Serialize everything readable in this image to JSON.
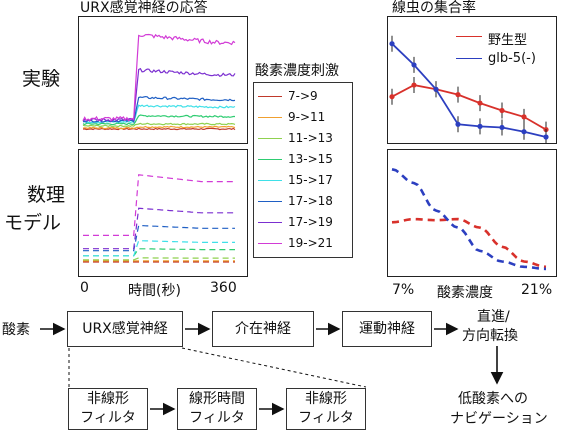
{
  "titles": {
    "urx_response": "URX感覚神経の応答",
    "aggregation": "線虫の集合率"
  },
  "row_labels": {
    "experiment": "実験",
    "model_line1": "数理",
    "model_line2": "モデル"
  },
  "stim_legend": {
    "title": "酸素濃度刺激",
    "items": [
      {
        "label": "7->9",
        "color": "#c0392b"
      },
      {
        "label": "9->11",
        "color": "#f0a030"
      },
      {
        "label": "11->13",
        "color": "#8fd14f"
      },
      {
        "label": "13->15",
        "color": "#2ecc71"
      },
      {
        "label": "15->17",
        "color": "#3fe0e8"
      },
      {
        "label": "17->18",
        "color": "#1f5fc4"
      },
      {
        "label": "17->19",
        "color": "#7b2fd0"
      },
      {
        "label": "19->21",
        "color": "#d23bd6"
      }
    ]
  },
  "time_axis": {
    "start": "0",
    "label": "時間(秒)",
    "end": "360"
  },
  "o2_axis": {
    "start": "7%",
    "label": "酸素濃度",
    "end": "21%"
  },
  "strain_legend": {
    "items": [
      {
        "label": "野生型",
        "color": "#d8312b"
      },
      {
        "label": "glb-5(-)",
        "color": "#2c3fc0"
      }
    ]
  },
  "chart_data": [
    {
      "type": "line",
      "panel": "experiment-urx",
      "x_range": [
        0,
        360
      ],
      "stimulus_time": 120,
      "series": [
        {
          "name": "7->9",
          "baseline": 0.02,
          "response": 0.02
        },
        {
          "name": "9->11",
          "baseline": 0.03,
          "response": 0.04
        },
        {
          "name": "11->13",
          "baseline": 0.05,
          "response": 0.07
        },
        {
          "name": "13->15",
          "baseline": 0.07,
          "response": 0.15
        },
        {
          "name": "15->17",
          "baseline": 0.09,
          "response": 0.25
        },
        {
          "name": "17->18",
          "baseline": 0.1,
          "response": 0.33
        },
        {
          "name": "17->19",
          "baseline": 0.11,
          "response": 0.6
        },
        {
          "name": "19->21",
          "baseline": 0.12,
          "response": 0.95
        }
      ]
    },
    {
      "type": "line",
      "panel": "model-urx",
      "x_range": [
        0,
        360
      ],
      "stimulus_time": 120,
      "series": [
        {
          "name": "7->9",
          "baseline": 0.02,
          "response": 0.02
        },
        {
          "name": "9->11",
          "baseline": 0.03,
          "response": 0.03
        },
        {
          "name": "11->13",
          "baseline": 0.04,
          "response": 0.06
        },
        {
          "name": "13->15",
          "baseline": 0.08,
          "response": 0.15
        },
        {
          "name": "15->17",
          "baseline": 0.08,
          "response": 0.23
        },
        {
          "name": "17->18",
          "baseline": 0.13,
          "response": 0.38
        },
        {
          "name": "17->19",
          "baseline": 0.15,
          "response": 0.55
        },
        {
          "name": "19->21",
          "baseline": 0.28,
          "response": 0.88
        }
      ]
    },
    {
      "type": "line",
      "panel": "experiment-aggregation",
      "x": [
        7,
        9,
        11,
        13,
        15,
        17,
        19,
        21
      ],
      "series": [
        {
          "name": "野生型",
          "values": [
            0.38,
            0.49,
            0.45,
            0.4,
            0.32,
            0.25,
            0.19,
            0.07
          ]
        },
        {
          "name": "glb-5(-)",
          "values": [
            0.88,
            0.68,
            0.45,
            0.12,
            0.1,
            0.09,
            0.05,
            0.0
          ]
        }
      ]
    },
    {
      "type": "line",
      "panel": "model-aggregation",
      "x": [
        7,
        9,
        11,
        13,
        15,
        17,
        19,
        21
      ],
      "series": [
        {
          "name": "野生型",
          "values": [
            0.45,
            0.48,
            0.47,
            0.48,
            0.4,
            0.22,
            0.08,
            0.03
          ]
        },
        {
          "name": "glb-5(-)",
          "values": [
            0.95,
            0.82,
            0.56,
            0.4,
            0.18,
            0.08,
            0.03,
            0.01
          ]
        }
      ]
    }
  ],
  "flow": {
    "input": "酸素",
    "urx": "URX感覚神経",
    "inter": "介在神経",
    "motor": "運動神経",
    "behavior_line1": "直進/",
    "behavior_line2": "方向転換",
    "outcome_line1": "低酸素への",
    "outcome_line2": "ナビゲーション"
  },
  "model": {
    "nl1_line1": "非線形",
    "nl1_line2": "フィルタ",
    "lin_line1": "線形時間",
    "lin_line2": "フィルタ",
    "nl2_line1": "非線形",
    "nl2_line2": "フィルタ"
  }
}
